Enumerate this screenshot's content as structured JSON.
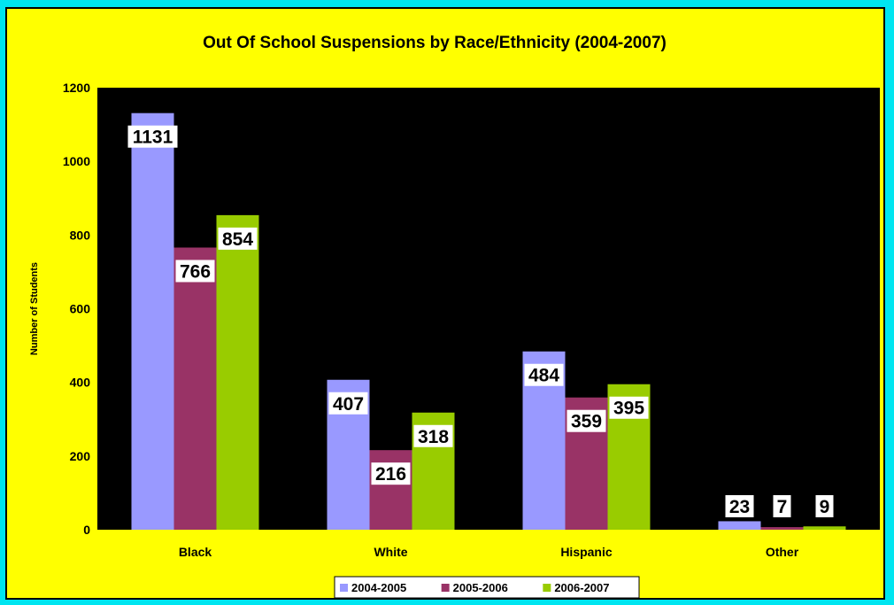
{
  "chart_data": {
    "type": "bar",
    "title": "Out Of School Suspensions by Race/Ethnicity (2004-2007)",
    "ylabel": "Number of Students",
    "xlabel": "",
    "categories": [
      "Black",
      "White",
      "Hispanic",
      "Other"
    ],
    "series": [
      {
        "name": "2004-2005",
        "values": [
          1131,
          407,
          484,
          23
        ],
        "color": "#9999ff"
      },
      {
        "name": "2005-2006",
        "values": [
          766,
          216,
          359,
          7
        ],
        "color": "#993366"
      },
      {
        "name": "2006-2007",
        "values": [
          854,
          318,
          395,
          9
        ],
        "color": "#99cc00"
      }
    ],
    "ylim": [
      0,
      1200
    ],
    "yticks": [
      "0",
      "200",
      "400",
      "600",
      "800",
      "1000",
      "1200"
    ],
    "plot_background": "#000000",
    "chart_background": "#ffff00",
    "page_background": "#00e5f0",
    "grid": false,
    "legend_position": "bottom"
  }
}
